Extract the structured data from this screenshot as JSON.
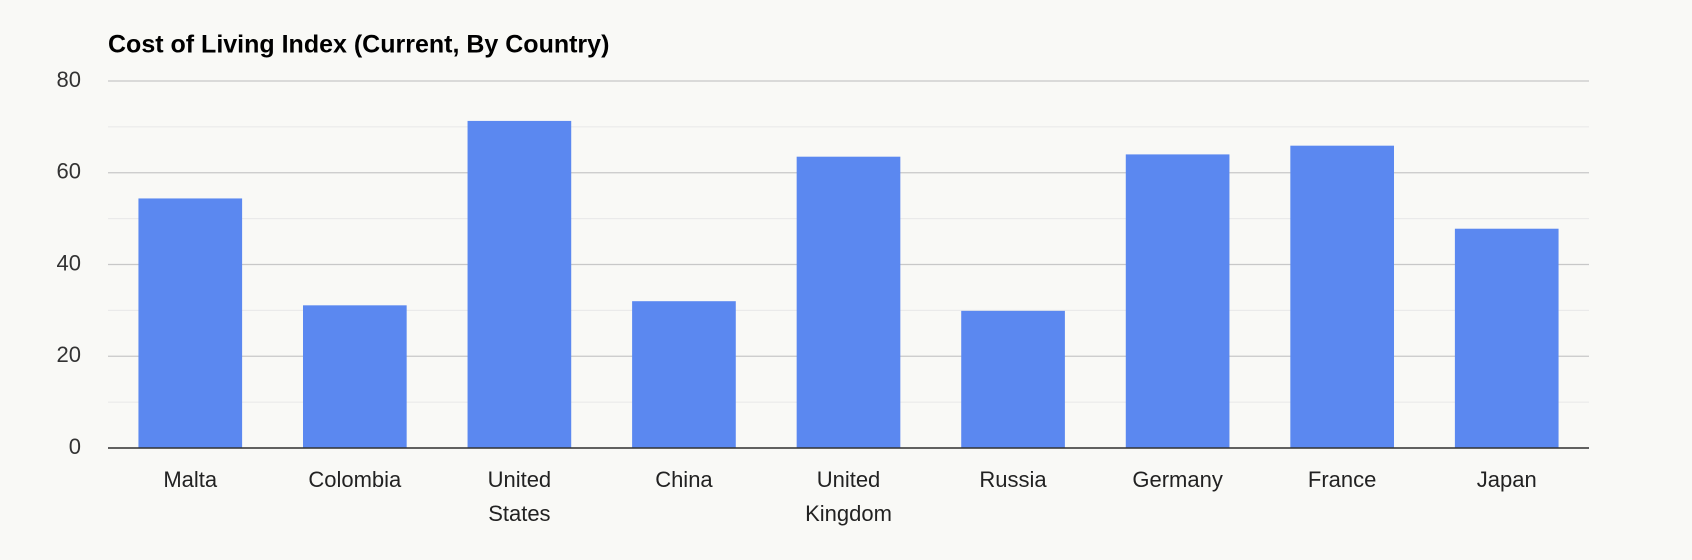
{
  "chart_data": {
    "type": "bar",
    "title": "Cost of Living Index (Current, By Country)",
    "categories": [
      "Malta",
      "Colombia",
      "United States",
      "China",
      "United Kingdom",
      "Russia",
      "Germany",
      "France",
      "Japan"
    ],
    "values": [
      54.4,
      31.1,
      71.3,
      32.0,
      63.5,
      29.9,
      64.0,
      65.9,
      47.8
    ],
    "color": "#5b88f0",
    "ylim": [
      0,
      80
    ],
    "yticks": [
      0,
      20,
      40,
      60,
      80
    ],
    "minor_yticks": [
      10,
      30,
      50,
      70
    ],
    "grid": true
  }
}
